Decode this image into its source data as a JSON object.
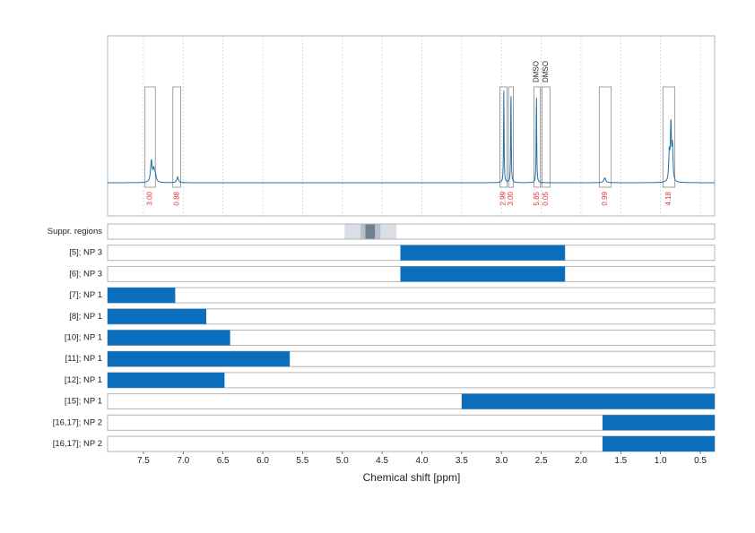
{
  "chart_data": {
    "type": "nmr-spectrum-with-region-tracks",
    "xlabel": "Chemical shift [ppm]",
    "xlim": [
      7.95,
      0.32
    ],
    "x_reversed": true,
    "xticks": [
      7.5,
      7.0,
      6.5,
      6.0,
      5.5,
      5.0,
      4.5,
      4.0,
      3.5,
      3.0,
      2.5,
      2.0,
      1.5,
      1.0,
      0.5
    ],
    "xtick_labels": [
      "7.5",
      "7.0",
      "6.5",
      "6.0",
      "5.5",
      "5.0",
      "4.5",
      "4.0",
      "3.5",
      "3.0",
      "2.5",
      "2.0",
      "1.5",
      "1.0",
      "0.5"
    ],
    "grid": true,
    "colors": {
      "spectrum": "#1f6fa8",
      "bar": "#0a6ebd",
      "integral": "#e8312f",
      "box": "#888888"
    },
    "spectrum_peaks": [
      {
        "ppm": 7.4,
        "height": 0.22,
        "width": 0.012
      },
      {
        "ppm": 7.37,
        "height": 0.12,
        "width": 0.012
      },
      {
        "ppm": 7.35,
        "height": 0.07,
        "width": 0.012
      },
      {
        "ppm": 7.07,
        "height": 0.06,
        "width": 0.012
      },
      {
        "ppm": 2.97,
        "height": 0.95,
        "width": 0.004
      },
      {
        "ppm": 2.88,
        "height": 0.95,
        "width": 0.004
      },
      {
        "ppm": 2.56,
        "height": 0.92,
        "width": 0.004
      },
      {
        "ppm": 1.7,
        "height": 0.05,
        "width": 0.015
      },
      {
        "ppm": 0.87,
        "height": 0.58,
        "width": 0.008
      },
      {
        "ppm": 0.85,
        "height": 0.35,
        "width": 0.008
      },
      {
        "ppm": 0.89,
        "height": 0.28,
        "width": 0.008
      }
    ],
    "integration_regions": [
      {
        "from": 7.48,
        "to": 7.35,
        "label": "3.00"
      },
      {
        "from": 7.13,
        "to": 7.03,
        "label": "0.88"
      },
      {
        "from": 3.02,
        "to": 2.93,
        "label": "2.99"
      },
      {
        "from": 2.91,
        "to": 2.85,
        "label": "3.00"
      },
      {
        "from": 2.59,
        "to": 2.51,
        "label": "5.85"
      },
      {
        "from": 2.49,
        "to": 2.39,
        "label": "0.05"
      },
      {
        "from": 1.77,
        "to": 1.62,
        "label": "0.99"
      },
      {
        "from": 0.97,
        "to": 0.82,
        "label": "4.18"
      }
    ],
    "peak_annotations": [
      {
        "ppm": 2.56,
        "label": "DMSO"
      },
      {
        "ppm": 2.44,
        "label": "DMSO"
      }
    ],
    "suppressed_regions": {
      "label": "Suppr. regions",
      "bands": [
        {
          "from": 4.97,
          "to": 4.32,
          "shade": "#d9dfe5"
        },
        {
          "from": 4.77,
          "to": 4.52,
          "shade": "#b6c1cc"
        },
        {
          "from": 4.71,
          "to": 4.59,
          "shade": "#6f8090"
        }
      ]
    },
    "tracks": [
      {
        "label": "[5]; NP 3",
        "from": 4.27,
        "to": 2.2
      },
      {
        "label": "[6]; NP 3",
        "from": 4.27,
        "to": 2.2
      },
      {
        "label": "[7]; NP 1",
        "from": 7.95,
        "to": 7.1
      },
      {
        "label": "[8]; NP 1",
        "from": 7.95,
        "to": 6.71
      },
      {
        "label": "[10]; NP 1",
        "from": 7.95,
        "to": 6.41
      },
      {
        "label": "[11]; NP 1",
        "from": 7.95,
        "to": 5.66
      },
      {
        "label": "[12]; NP 1",
        "from": 7.95,
        "to": 6.48
      },
      {
        "label": "[15]; NP 1",
        "from": 3.5,
        "to": 0.32
      },
      {
        "label": "[16,17]; NP 2",
        "from": 1.73,
        "to": 0.32
      },
      {
        "label": "[16,17]; NP 2",
        "from": 1.73,
        "to": 0.32
      }
    ]
  }
}
